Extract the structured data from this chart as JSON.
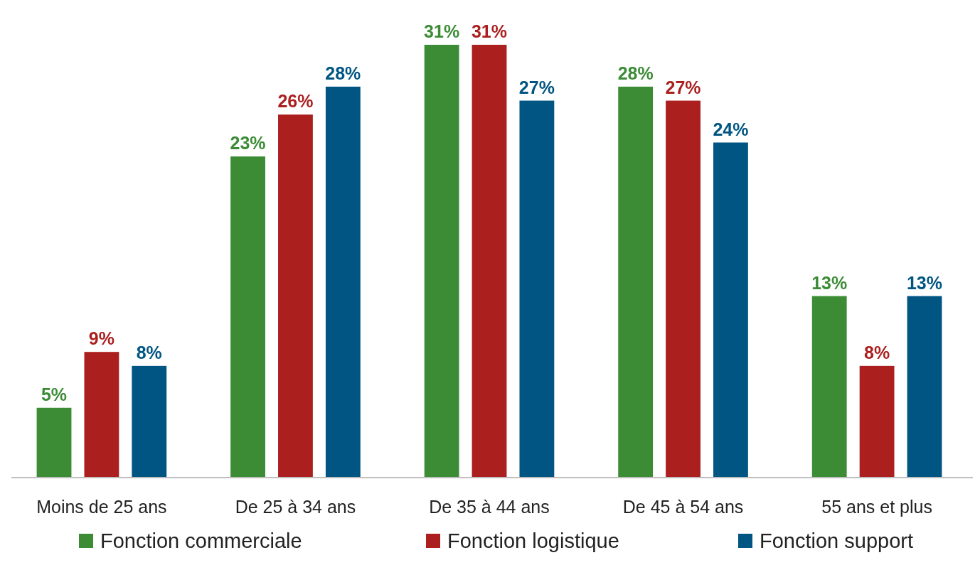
{
  "chart_data": {
    "type": "bar",
    "categories": [
      "Moins de 25 ans",
      "De 25 à 34 ans",
      "De 35 à 44 ans",
      "De 45 à 54 ans",
      "55 ans et plus"
    ],
    "series": [
      {
        "name": "Fonction commerciale",
        "color": "#3c8c36",
        "values": [
          5,
          23,
          31,
          28,
          13
        ],
        "value_labels": [
          "5%",
          "23%",
          "31%",
          "28%",
          "13%"
        ]
      },
      {
        "name": "Fonction logistique",
        "color": "#ab1f1f",
        "values": [
          9,
          26,
          31,
          27,
          8
        ],
        "value_labels": [
          "9%",
          "26%",
          "31%",
          "27%",
          "8%"
        ]
      },
      {
        "name": "Fonction support",
        "color": "#005582",
        "values": [
          8,
          28,
          27,
          24,
          13
        ],
        "value_labels": [
          "8%",
          "28%",
          "27%",
          "24%",
          "13%"
        ]
      }
    ],
    "relative": false,
    "grid": false,
    "legend": "bottom"
  }
}
